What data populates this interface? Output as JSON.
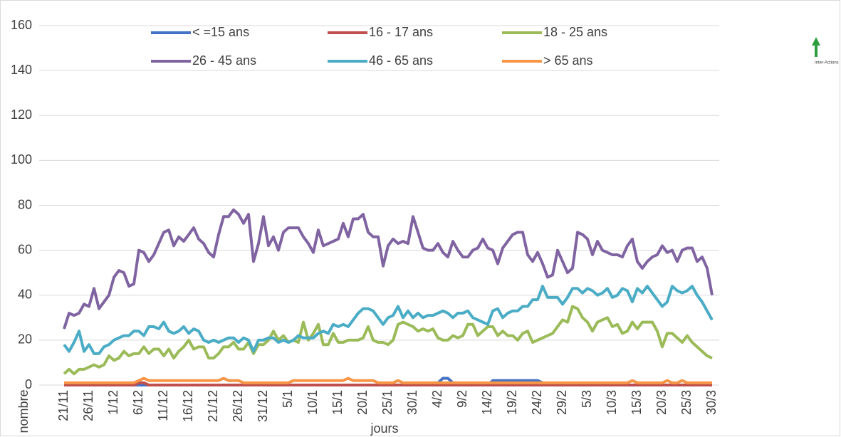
{
  "chart_data": {
    "type": "line",
    "x_label": "jours",
    "y_label": "nombre",
    "logo_text": "Inter-Actions",
    "categories": [
      "21/11",
      null,
      null,
      null,
      null,
      "26/11",
      null,
      null,
      null,
      null,
      "1/12",
      null,
      null,
      null,
      null,
      "6/12",
      null,
      null,
      null,
      null,
      "11/12",
      null,
      null,
      null,
      null,
      "16/12",
      null,
      null,
      null,
      null,
      "21/12",
      null,
      null,
      null,
      null,
      "26/12",
      null,
      null,
      null,
      null,
      "31/12",
      null,
      null,
      null,
      null,
      "5/1",
      null,
      null,
      null,
      null,
      "10/1",
      null,
      null,
      null,
      null,
      "15/1",
      null,
      null,
      null,
      null,
      "20/1",
      null,
      null,
      null,
      null,
      "25/1",
      null,
      null,
      null,
      null,
      "30/1",
      null,
      null,
      null,
      null,
      "4/2",
      null,
      null,
      null,
      null,
      "9/2",
      null,
      null,
      null,
      null,
      "14/2",
      null,
      null,
      null,
      null,
      "19/2",
      null,
      null,
      null,
      null,
      "24/2",
      null,
      null,
      null,
      null,
      "29/2",
      null,
      null,
      null,
      null,
      "5/3",
      null,
      null,
      null,
      null,
      "10/3",
      null,
      null,
      null,
      null,
      "15/3",
      null,
      null,
      null,
      null,
      "20/3",
      null,
      null,
      null,
      null,
      "25/3",
      null,
      null,
      null,
      null,
      "30/3"
    ],
    "series": [
      {
        "name": "< =15 ans",
        "color": "#4472c4",
        "values": [
          0,
          0,
          0,
          0,
          0,
          0,
          0,
          0,
          0,
          0,
          0,
          0,
          0,
          0,
          0,
          0,
          0,
          0,
          0,
          0,
          0,
          0,
          0,
          0,
          0,
          0,
          0,
          0,
          0,
          0,
          0,
          0,
          0,
          0,
          0,
          0,
          0,
          0,
          0,
          0,
          0,
          0,
          0,
          0,
          0,
          0,
          0,
          0,
          0,
          0,
          0,
          0,
          0,
          0,
          0,
          0,
          0,
          0,
          0,
          0,
          0,
          0,
          0,
          0,
          0,
          0,
          0,
          0,
          0,
          0,
          0,
          0,
          0,
          0,
          1,
          1,
          3,
          3,
          1,
          0,
          0,
          0,
          0,
          0,
          0,
          0,
          2,
          2,
          2,
          2,
          2,
          2,
          2,
          2,
          2,
          2,
          1,
          0,
          0,
          0,
          0,
          0,
          0,
          0,
          0,
          0,
          0,
          0,
          0,
          0,
          0,
          0,
          0,
          0,
          0,
          0,
          0,
          0,
          0,
          0,
          0,
          0,
          0,
          0,
          0,
          0,
          0,
          0,
          0,
          0,
          0
        ]
      },
      {
        "name": "16 - 17 ans",
        "color": "#c0504d",
        "values": [
          0,
          0,
          0,
          0,
          0,
          0,
          0,
          0,
          0,
          0,
          0,
          0,
          0,
          0,
          0,
          1,
          1,
          0,
          0,
          0,
          0,
          0,
          0,
          0,
          0,
          0,
          0,
          0,
          0,
          0,
          0,
          0,
          0,
          0,
          0,
          0,
          0,
          0,
          0,
          0,
          0,
          0,
          0,
          0,
          0,
          0,
          0,
          0,
          0,
          0,
          0,
          0,
          0,
          0,
          0,
          0,
          0,
          0,
          0,
          0,
          0,
          0,
          0,
          0,
          0,
          0,
          0,
          0,
          0,
          0,
          0,
          0,
          0,
          0,
          0,
          0,
          0,
          0,
          0,
          0,
          0,
          0,
          0,
          0,
          0,
          0,
          0,
          0,
          0,
          0,
          0,
          0,
          0,
          0,
          0,
          0,
          0,
          0,
          0,
          0,
          0,
          0,
          0,
          0,
          0,
          0,
          0,
          0,
          0,
          0,
          0,
          0,
          0,
          0,
          0,
          0,
          0,
          0,
          0,
          0,
          0,
          0,
          0,
          0,
          0,
          0,
          0,
          0,
          0,
          0,
          0
        ]
      },
      {
        "name": "18 - 25 ans",
        "color": "#9bbb59",
        "values": [
          5,
          7,
          5,
          7,
          7,
          8,
          9,
          8,
          9,
          13,
          11,
          12,
          15,
          13,
          14,
          14,
          17,
          14,
          16,
          16,
          13,
          16,
          12,
          15,
          17,
          20,
          16,
          17,
          17,
          12,
          12,
          14,
          17,
          17,
          19,
          16,
          16,
          19,
          14,
          18,
          18,
          20,
          24,
          20,
          22,
          19,
          20,
          19,
          28,
          20,
          23,
          27,
          18,
          18,
          23,
          19,
          19,
          20,
          20,
          20,
          21,
          26,
          20,
          19,
          19,
          18,
          20,
          27,
          28,
          27,
          26,
          24,
          25,
          24,
          25,
          21,
          20,
          20,
          22,
          21,
          22,
          27,
          27,
          22,
          24,
          26,
          26,
          22,
          24,
          22,
          22,
          20,
          23,
          24,
          19,
          20,
          21,
          22,
          23,
          26,
          29,
          28,
          35,
          34,
          30,
          28,
          24,
          28,
          29,
          30,
          26,
          27,
          23,
          24,
          28,
          25,
          28,
          28,
          28,
          24,
          17,
          23,
          23,
          21,
          19,
          22,
          19,
          17,
          15,
          13,
          12
        ]
      },
      {
        "name": "26 - 45 ans",
        "color": "#8064a2",
        "values": [
          25,
          32,
          31,
          32,
          36,
          35,
          43,
          34,
          37,
          40,
          48,
          51,
          50,
          44,
          45,
          60,
          59,
          55,
          58,
          63,
          68,
          69,
          62,
          66,
          64,
          67,
          70,
          65,
          63,
          59,
          57,
          67,
          75,
          75,
          78,
          76,
          72,
          76,
          55,
          63,
          75,
          62,
          66,
          60,
          68,
          70,
          70,
          70,
          66,
          63,
          59,
          69,
          62,
          63,
          64,
          65,
          72,
          66,
          74,
          74,
          76,
          68,
          66,
          66,
          53,
          62,
          65,
          63,
          64,
          63,
          75,
          68,
          61,
          60,
          60,
          63,
          59,
          57,
          64,
          60,
          57,
          57,
          60,
          61,
          65,
          61,
          60,
          54,
          61,
          64,
          67,
          68,
          68,
          58,
          55,
          59,
          54,
          48,
          49,
          60,
          55,
          50,
          52,
          68,
          67,
          65,
          58,
          64,
          60,
          59,
          58,
          58,
          57,
          62,
          65,
          55,
          52,
          55,
          57,
          58,
          62,
          59,
          60,
          55,
          60,
          61,
          61,
          55,
          57,
          52,
          40
        ]
      },
      {
        "name": "46 - 65 ans",
        "color": "#4bacc6",
        "values": [
          18,
          15,
          19,
          24,
          15,
          18,
          14,
          14,
          17,
          18,
          20,
          21,
          22,
          22,
          24,
          24,
          22,
          26,
          26,
          25,
          28,
          24,
          23,
          24,
          26,
          23,
          25,
          24,
          20,
          19,
          20,
          19,
          20,
          21,
          21,
          19,
          21,
          20,
          15,
          20,
          20,
          21,
          21,
          19,
          20,
          19,
          20,
          22,
          21,
          21,
          21,
          23,
          24,
          23,
          27,
          26,
          27,
          26,
          29,
          32,
          34,
          34,
          33,
          30,
          27,
          30,
          31,
          35,
          30,
          33,
          30,
          32,
          30,
          31,
          31,
          32,
          33,
          32,
          30,
          32,
          32,
          33,
          30,
          29,
          28,
          27,
          33,
          34,
          30,
          32,
          33,
          33,
          35,
          35,
          38,
          38,
          44,
          39,
          39,
          39,
          36,
          39,
          43,
          43,
          41,
          43,
          42,
          40,
          41,
          43,
          39,
          40,
          43,
          42,
          37,
          43,
          41,
          44,
          41,
          38,
          35,
          37,
          44,
          42,
          41,
          42,
          44,
          40,
          37,
          33,
          29
        ]
      },
      {
        "name": "> 65 ans",
        "color": "#f79646",
        "values": [
          1,
          1,
          1,
          1,
          1,
          1,
          1,
          1,
          1,
          1,
          1,
          1,
          1,
          1,
          1,
          2,
          3,
          2,
          2,
          2,
          2,
          2,
          2,
          2,
          2,
          2,
          2,
          2,
          2,
          2,
          2,
          2,
          3,
          2,
          2,
          2,
          1,
          1,
          1,
          1,
          1,
          1,
          1,
          1,
          1,
          1,
          2,
          2,
          2,
          2,
          2,
          2,
          2,
          2,
          2,
          2,
          2,
          3,
          2,
          2,
          2,
          2,
          2,
          1,
          1,
          1,
          1,
          2,
          1,
          1,
          1,
          1,
          1,
          1,
          1,
          1,
          1,
          1,
          1,
          1,
          1,
          1,
          1,
          1,
          1,
          1,
          1,
          1,
          1,
          1,
          1,
          1,
          1,
          1,
          1,
          1,
          1,
          1,
          1,
          1,
          1,
          1,
          1,
          1,
          1,
          1,
          1,
          1,
          1,
          1,
          1,
          1,
          1,
          1,
          2,
          1,
          1,
          1,
          1,
          1,
          1,
          2,
          1,
          1,
          2,
          1,
          1,
          1,
          1,
          1,
          1
        ]
      }
    ],
    "ylim": [
      0,
      160
    ],
    "yticks": [
      0,
      20,
      40,
      60,
      80,
      100,
      120,
      140,
      160
    ],
    "grid": true,
    "legend": "top"
  }
}
